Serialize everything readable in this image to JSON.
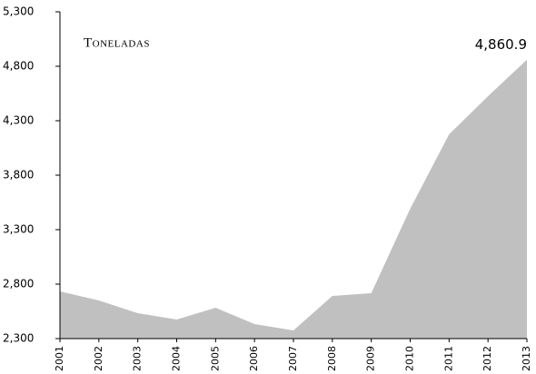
{
  "chart_data": {
    "type": "area",
    "ylabel": "Toneladas",
    "categories": [
      "2001",
      "2002",
      "2003",
      "2004",
      "2005",
      "2006",
      "2007",
      "2008",
      "2009",
      "2010",
      "2011",
      "2012",
      "2013"
    ],
    "values": [
      2733,
      2650,
      2533,
      2475,
      2583,
      2433,
      2375,
      2692,
      2717,
      3492,
      4175,
      4525,
      4860.9
    ],
    "value_labels": [
      null,
      null,
      null,
      null,
      null,
      null,
      null,
      null,
      null,
      null,
      null,
      null,
      "4,860.9"
    ],
    "color": "#c0c0c0",
    "ylim": [
      2300,
      5300
    ],
    "yticks": [
      {
        "value": 2300,
        "label": "2,300"
      },
      {
        "value": 2800,
        "label": "2,800"
      },
      {
        "value": 3300,
        "label": "3,300"
      },
      {
        "value": 3800,
        "label": "3,800"
      },
      {
        "value": 4300,
        "label": "4,300"
      },
      {
        "value": 4800,
        "label": "4,800"
      },
      {
        "value": 5300,
        "label": "5,300"
      }
    ],
    "grid": false
  }
}
